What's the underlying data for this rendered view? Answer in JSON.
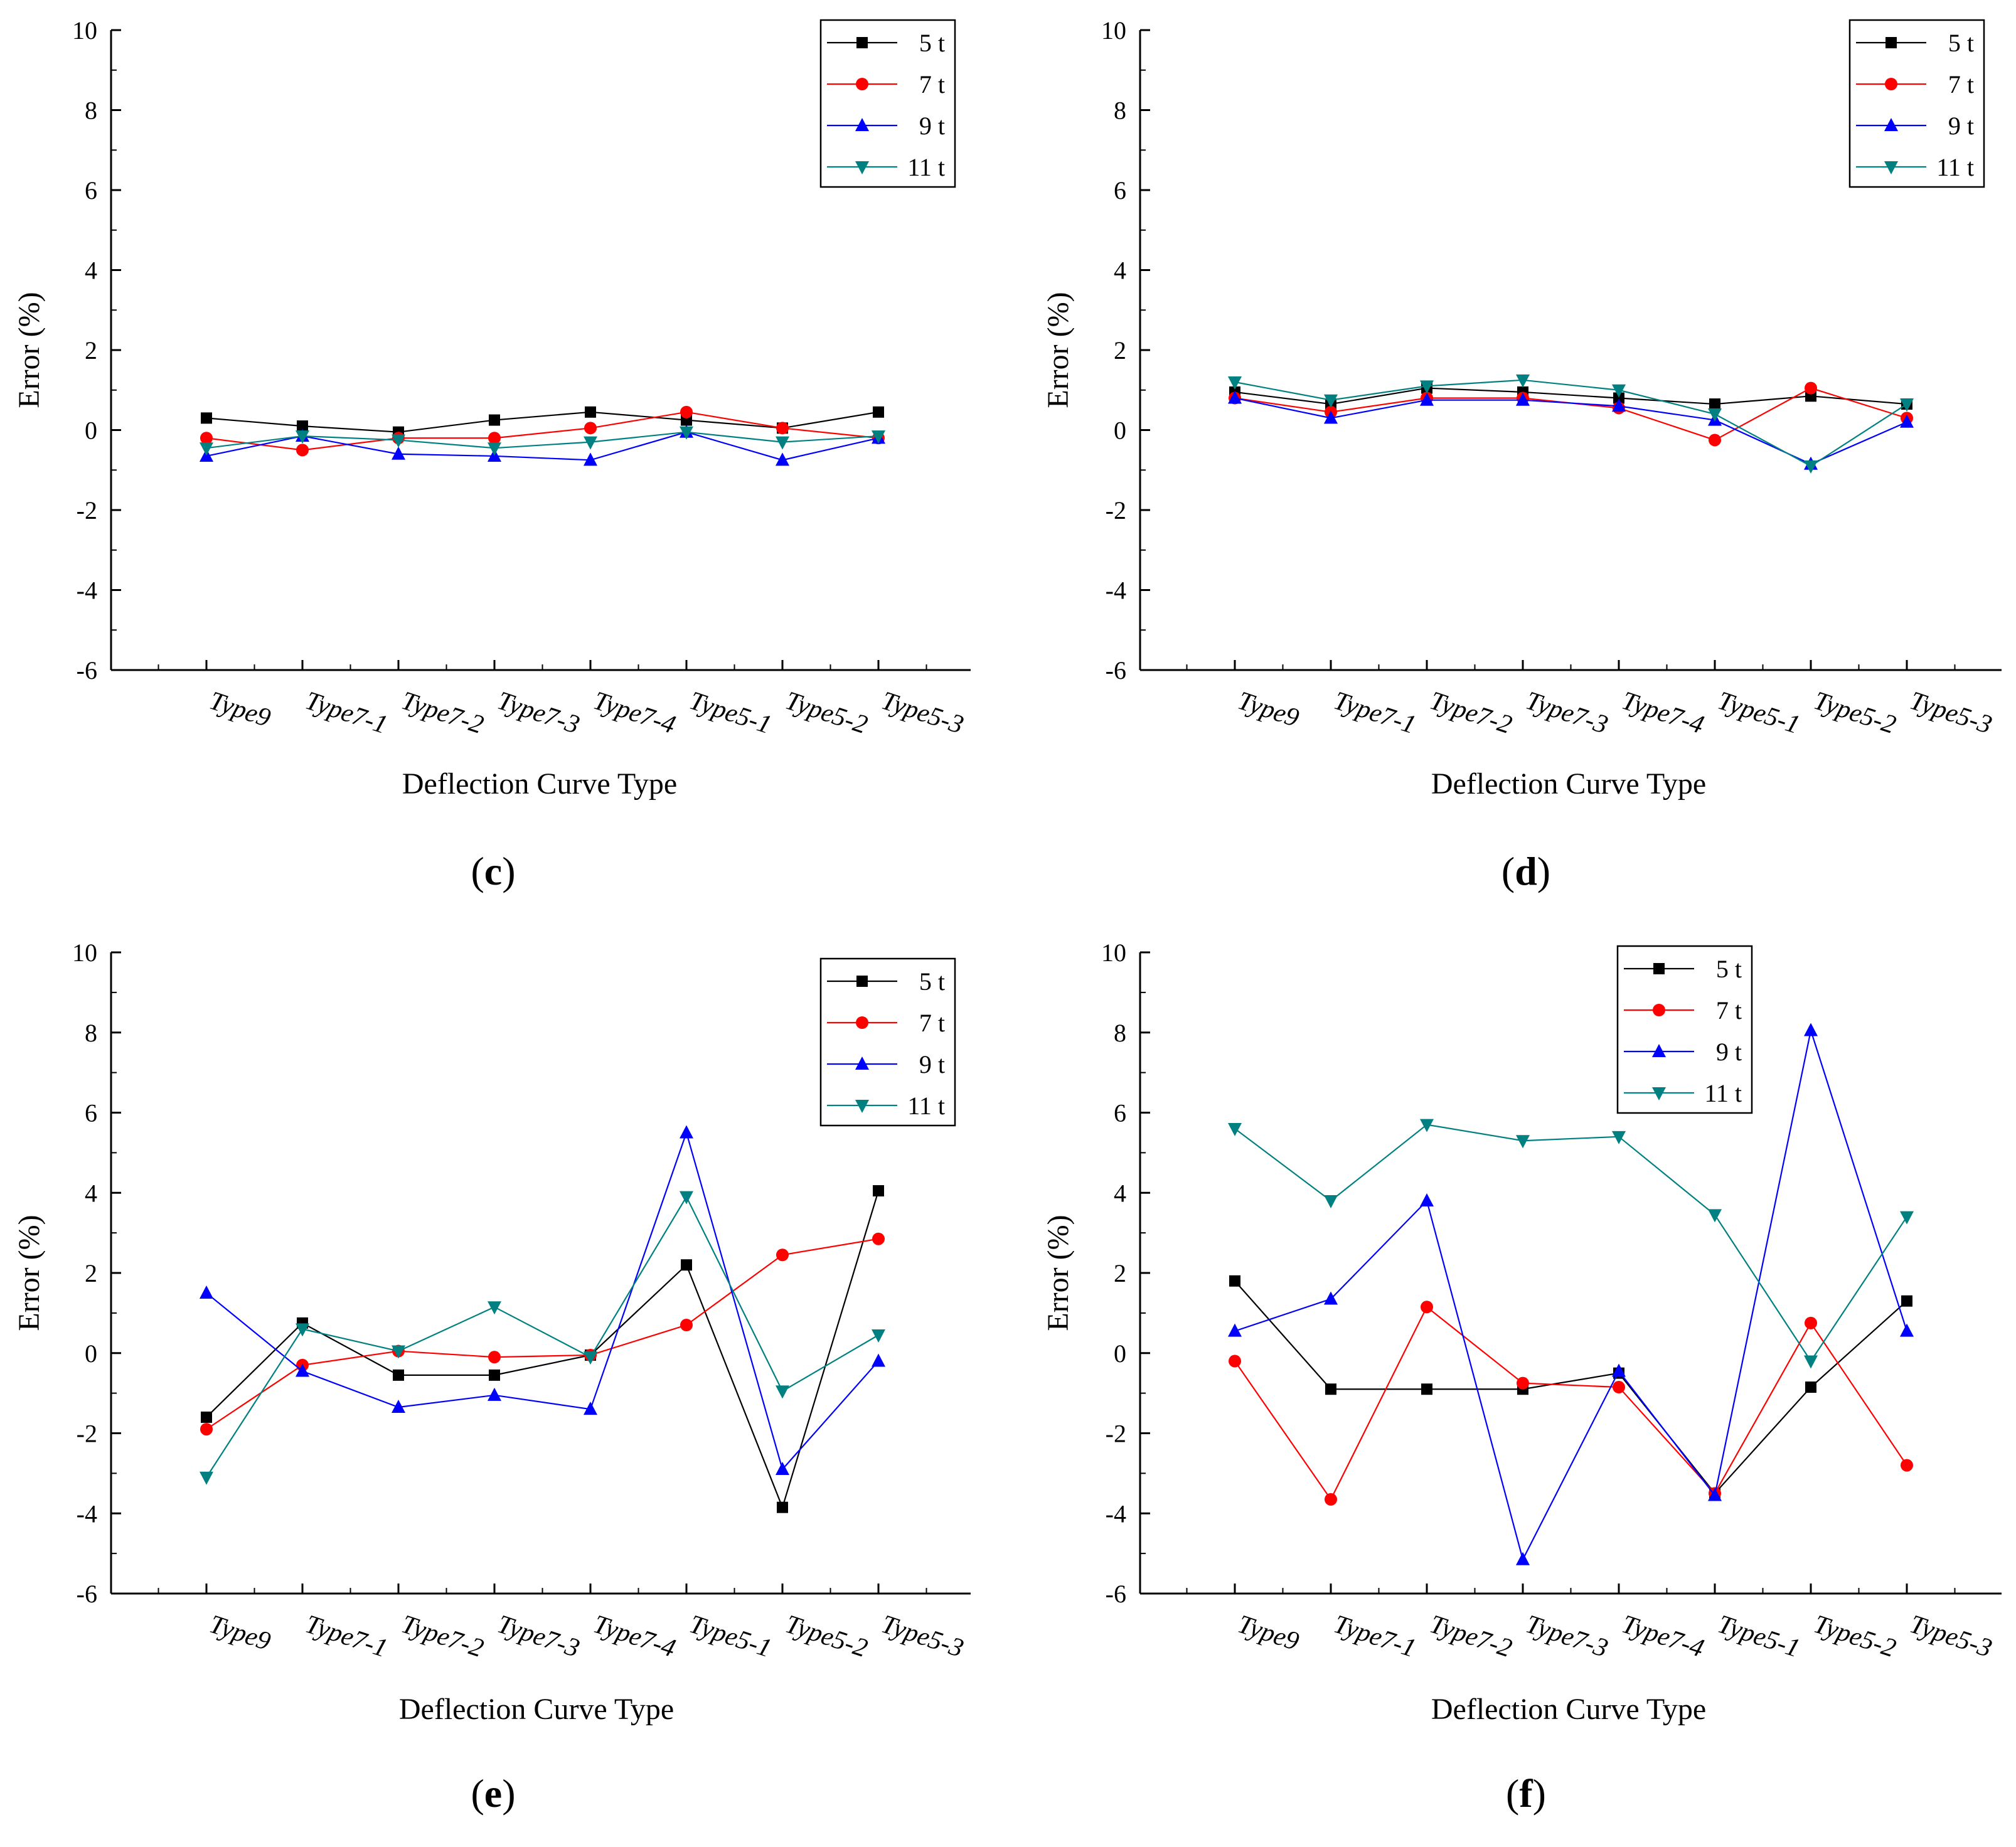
{
  "colors": {
    "5 t": "#000000",
    "7 t": "#ff0000",
    "9 t": "#0000ff",
    "11 t": "#008080"
  },
  "chart_data": [
    {
      "type": "line",
      "panel_label": "c",
      "xlabel": "Deflection Curve Type",
      "ylabel": "Error (%)",
      "ylim": [
        -6,
        10
      ],
      "yticks": [
        "10",
        "8",
        "6",
        "4",
        "2",
        "0",
        "-2",
        "-4",
        "-6"
      ],
      "categories": [
        "Type9",
        "Type7-1",
        "Type7-2",
        "Type7-3",
        "Type7-4",
        "Type5-1",
        "Type5-2",
        "Type5-3"
      ],
      "legend_position": "top-right",
      "series": [
        {
          "name": "5 t",
          "marker": "square",
          "values": [
            0.3,
            0.1,
            -0.05,
            0.25,
            0.45,
            0.25,
            0.05,
            0.45
          ]
        },
        {
          "name": "7 t",
          "marker": "circle",
          "values": [
            -0.2,
            -0.5,
            -0.2,
            -0.2,
            0.05,
            0.45,
            0.05,
            -0.2
          ]
        },
        {
          "name": "9 t",
          "marker": "triangle-up",
          "values": [
            -0.65,
            -0.15,
            -0.6,
            -0.65,
            -0.75,
            -0.05,
            -0.75,
            -0.2
          ]
        },
        {
          "name": "11 t",
          "marker": "triangle-down",
          "values": [
            -0.45,
            -0.15,
            -0.25,
            -0.45,
            -0.3,
            -0.05,
            -0.3,
            -0.15
          ]
        }
      ]
    },
    {
      "type": "line",
      "panel_label": "d",
      "xlabel": "Deflection Curve Type",
      "ylabel": "Error (%)",
      "ylim": [
        -6,
        10
      ],
      "yticks": [
        "10",
        "8",
        "6",
        "4",
        "2",
        "0",
        "-2",
        "-4",
        "-6"
      ],
      "categories": [
        "Type9",
        "Type7-1",
        "Type7-2",
        "Type7-3",
        "Type7-4",
        "Type5-1",
        "Type5-2",
        "Type5-3"
      ],
      "legend_position": "top-right",
      "series": [
        {
          "name": "5 t",
          "marker": "square",
          "values": [
            0.95,
            0.65,
            1.05,
            0.95,
            0.8,
            0.65,
            0.85,
            0.65
          ]
        },
        {
          "name": "7 t",
          "marker": "circle",
          "values": [
            0.8,
            0.45,
            0.8,
            0.8,
            0.55,
            -0.25,
            1.05,
            0.3
          ]
        },
        {
          "name": "9 t",
          "marker": "triangle-up",
          "values": [
            0.8,
            0.3,
            0.75,
            0.75,
            0.6,
            0.25,
            -0.85,
            0.2
          ]
        },
        {
          "name": "11 t",
          "marker": "triangle-down",
          "values": [
            1.2,
            0.75,
            1.1,
            1.25,
            1.0,
            0.4,
            -0.9,
            0.65
          ]
        }
      ]
    },
    {
      "type": "line",
      "panel_label": "e",
      "xlabel": "Deflection Curve Type",
      "ylabel": "Error (%)",
      "ylim": [
        -6,
        10
      ],
      "yticks": [
        "10",
        "8",
        "6",
        "4",
        "2",
        "0",
        "-2",
        "-4",
        "-6"
      ],
      "categories": [
        "Type9",
        "Type7-1",
        "Type7-2",
        "Type7-3",
        "Type7-4",
        "Type5-1",
        "Type5-2",
        "Type5-3"
      ],
      "legend_position": "top-right",
      "series": [
        {
          "name": "5 t",
          "marker": "square",
          "values": [
            -1.6,
            0.75,
            -0.55,
            -0.55,
            -0.05,
            2.2,
            -3.85,
            4.05
          ]
        },
        {
          "name": "7 t",
          "marker": "circle",
          "values": [
            -1.9,
            -0.3,
            0.05,
            -0.1,
            -0.05,
            0.7,
            2.45,
            2.85
          ]
        },
        {
          "name": "9 t",
          "marker": "triangle-up",
          "values": [
            1.5,
            -0.45,
            -1.35,
            -1.05,
            -1.4,
            5.5,
            -2.9,
            -0.2
          ]
        },
        {
          "name": "11 t",
          "marker": "triangle-down",
          "values": [
            -3.1,
            0.6,
            0.05,
            1.15,
            -0.1,
            3.9,
            -0.95,
            0.45
          ]
        }
      ]
    },
    {
      "type": "line",
      "panel_label": "f",
      "xlabel": "Deflection Curve Type",
      "ylabel": "Error (%)",
      "ylim": [
        -6,
        10
      ],
      "yticks": [
        "10",
        "8",
        "6",
        "4",
        "2",
        "0",
        "-2",
        "-4",
        "-6"
      ],
      "categories": [
        "Type9",
        "Type7-1",
        "Type7-2",
        "Type7-3",
        "Type7-4",
        "Type5-1",
        "Type5-2",
        "Type5-3"
      ],
      "legend_position": "top-center",
      "series": [
        {
          "name": "5 t",
          "marker": "square",
          "values": [
            1.8,
            -0.9,
            -0.9,
            -0.9,
            -0.5,
            -3.5,
            -0.85,
            1.3
          ]
        },
        {
          "name": "7 t",
          "marker": "circle",
          "values": [
            -0.2,
            -3.65,
            1.15,
            -0.75,
            -0.85,
            -3.5,
            0.75,
            -2.8
          ]
        },
        {
          "name": "9 t",
          "marker": "triangle-up",
          "values": [
            0.55,
            1.35,
            3.8,
            -5.15,
            -0.45,
            -3.55,
            8.05,
            0.55
          ]
        },
        {
          "name": "11 t",
          "marker": "triangle-down",
          "values": [
            5.6,
            3.8,
            5.7,
            5.3,
            5.4,
            3.45,
            -0.2,
            3.4
          ]
        }
      ]
    }
  ]
}
